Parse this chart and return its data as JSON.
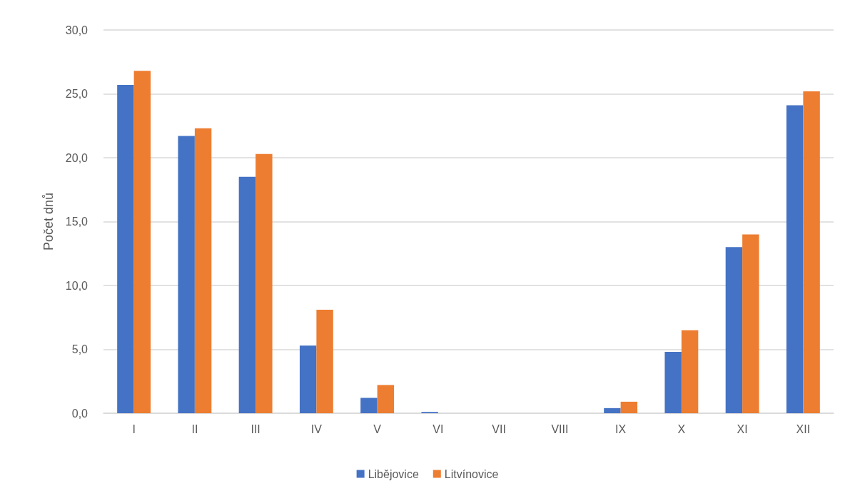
{
  "chart_data": {
    "type": "bar",
    "ylabel": "Počet dnů",
    "categories": [
      "I",
      "II",
      "III",
      "IV",
      "V",
      "VI",
      "VII",
      "VIII",
      "IX",
      "X",
      "XI",
      "XII"
    ],
    "series": [
      {
        "name": "Libějovice",
        "color": "#4472c4",
        "values": [
          25.7,
          21.7,
          18.5,
          5.3,
          1.2,
          0.1,
          0,
          0,
          0.4,
          4.8,
          13.0,
          24.1
        ]
      },
      {
        "name": "Litvínovice",
        "color": "#ed7d31",
        "values": [
          26.8,
          22.3,
          20.3,
          8.1,
          2.2,
          0,
          0,
          0,
          0.9,
          6.5,
          14.0,
          25.2
        ]
      }
    ],
    "ylim": [
      0,
      30
    ],
    "yticks": [
      {
        "value": 0,
        "label": "0,0"
      },
      {
        "value": 5,
        "label": "5,0"
      },
      {
        "value": 10,
        "label": "10,0"
      },
      {
        "value": 15,
        "label": "15,0"
      },
      {
        "value": 20,
        "label": "20,0"
      },
      {
        "value": 25,
        "label": "25,0"
      },
      {
        "value": 30,
        "label": "30,0"
      }
    ],
    "grid": "y",
    "legend": "bottom"
  }
}
